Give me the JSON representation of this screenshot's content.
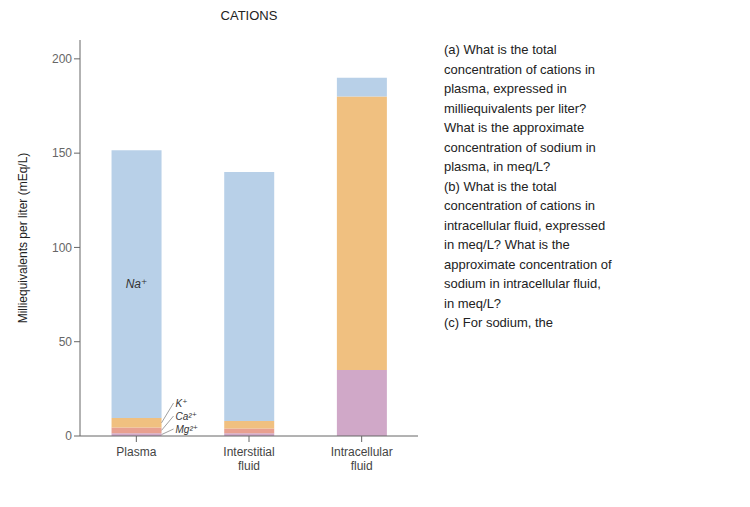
{
  "chart_data": {
    "type": "bar",
    "stacked": true,
    "title": "CATIONS",
    "ylabel": "Milliequivalents per liter (mEq/L)",
    "categories": [
      "Plasma",
      "Interstitial\nfluid",
      "Intracellular\nfluid"
    ],
    "series": [
      {
        "color": "#d0a8c8",
        "values": [
          1.5,
          1.5,
          null
        ]
      },
      {
        "color": "#e8a090",
        "values": [
          3,
          2.5,
          null
        ]
      },
      {
        "color": "#f0c080",
        "values": [
          5,
          4,
          null
        ]
      },
      {
        "color": "#b8d0e8",
        "values": [
          142,
          132,
          null
        ]
      },
      {
        "color": "#d0a8c8",
        "values": [
          null,
          null,
          35
        ]
      },
      {
        "color": "#f0c080",
        "values": [
          null,
          null,
          145
        ]
      },
      {
        "color": "#b8d0e8",
        "values": [
          null,
          null,
          10
        ]
      }
    ],
    "ylim": [
      0,
      210
    ],
    "yticks": [
      0,
      50,
      100,
      150,
      200
    ],
    "grid": false,
    "annotations": [
      {
        "text": "Na⁺",
        "category": "Plasma",
        "series": 3
      },
      {
        "text": "K⁺",
        "category": "Plasma",
        "series": 2
      },
      {
        "text": "Ca²⁺",
        "category": "Plasma",
        "series": 1
      },
      {
        "text": "Mg²⁺",
        "category": "Plasma",
        "series": 0
      }
    ],
    "note": "(a) What is the total\nconcentration of cations in\nplasma, expressed in\nmilliequivalents per liter?\nWhat is the approximate\nconcentration of sodium in\nplasma, in meq/L?\n(b) What is the total\nconcentration of cations in\nintracellular fluid, expressed\nin meq/L? What is the\napproximate concentration of\nsodium in intracellular fluid,\nin meq/L?\n(c) For sodium, the"
  }
}
